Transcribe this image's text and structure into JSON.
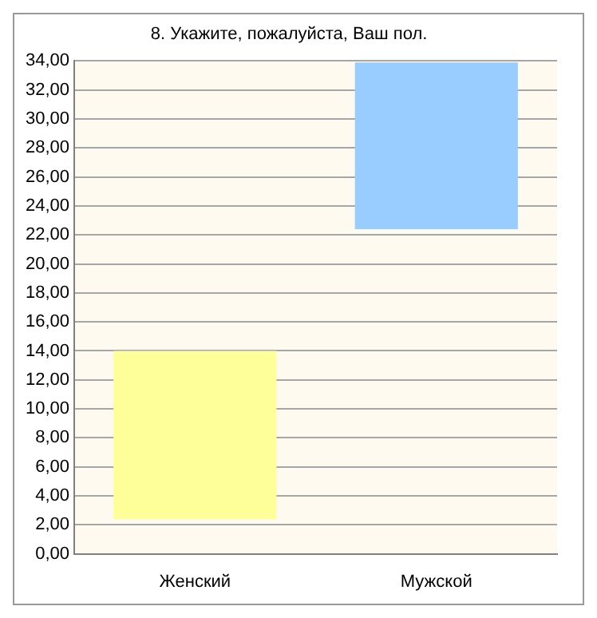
{
  "chart_data": {
    "type": "bar",
    "title": "8. Укажите, пожалуйста, Ваш пол.",
    "categories": [
      "Женский",
      "Мужской"
    ],
    "values": [
      11.6,
      11.5
    ],
    "base": [
      2.4,
      22.4
    ],
    "colors": [
      "#ffff99",
      "#99ccff"
    ],
    "ylim": [
      0,
      34
    ],
    "yticks": [
      {
        "value": 0,
        "label": "0,00"
      },
      {
        "value": 2,
        "label": "2,00"
      },
      {
        "value": 4,
        "label": "4,00"
      },
      {
        "value": 6,
        "label": "6,00"
      },
      {
        "value": 8,
        "label": "8,00"
      },
      {
        "value": 10,
        "label": "10,00"
      },
      {
        "value": 12,
        "label": "12,00"
      },
      {
        "value": 14,
        "label": "14,00"
      },
      {
        "value": 16,
        "label": "16,00"
      },
      {
        "value": 18,
        "label": "18,00"
      },
      {
        "value": 20,
        "label": "20,00"
      },
      {
        "value": 22,
        "label": "22,00"
      },
      {
        "value": 24,
        "label": "24,00"
      },
      {
        "value": 26,
        "label": "26,00"
      },
      {
        "value": 28,
        "label": "28,00"
      },
      {
        "value": 30,
        "label": "30,00"
      },
      {
        "value": 32,
        "label": "32,00"
      },
      {
        "value": 34,
        "label": "34,00"
      }
    ],
    "grid": "y",
    "legend": false
  }
}
